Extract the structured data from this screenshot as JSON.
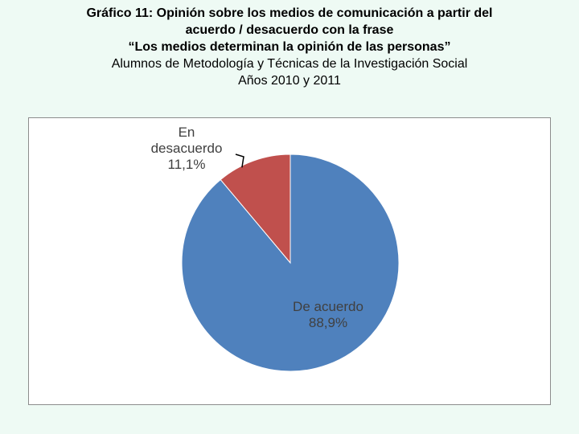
{
  "title": {
    "line1": "Gráfico 11: Opinión sobre los medios de comunicación a partir del",
    "line2": "acuerdo / desacuerdo con la frase",
    "line3": "“Los medios determinan la opinión de las personas”",
    "line4": "Alumnos de Metodología y Técnicas de la Investigación Social",
    "line5": "Años 2010 y 2011"
  },
  "chart_data": {
    "type": "pie",
    "categories": [
      "De acuerdo",
      "En desacuerdo"
    ],
    "values": [
      88.9,
      11.1
    ],
    "value_labels": [
      "88,9%",
      "11,1%"
    ],
    "colors": [
      "#4f81bd",
      "#c0504d"
    ],
    "label_lines": [
      [
        "De acuerdo",
        "88,9%"
      ],
      [
        "En",
        "desacuerdo",
        "11,1%"
      ]
    ],
    "legend": "none"
  }
}
